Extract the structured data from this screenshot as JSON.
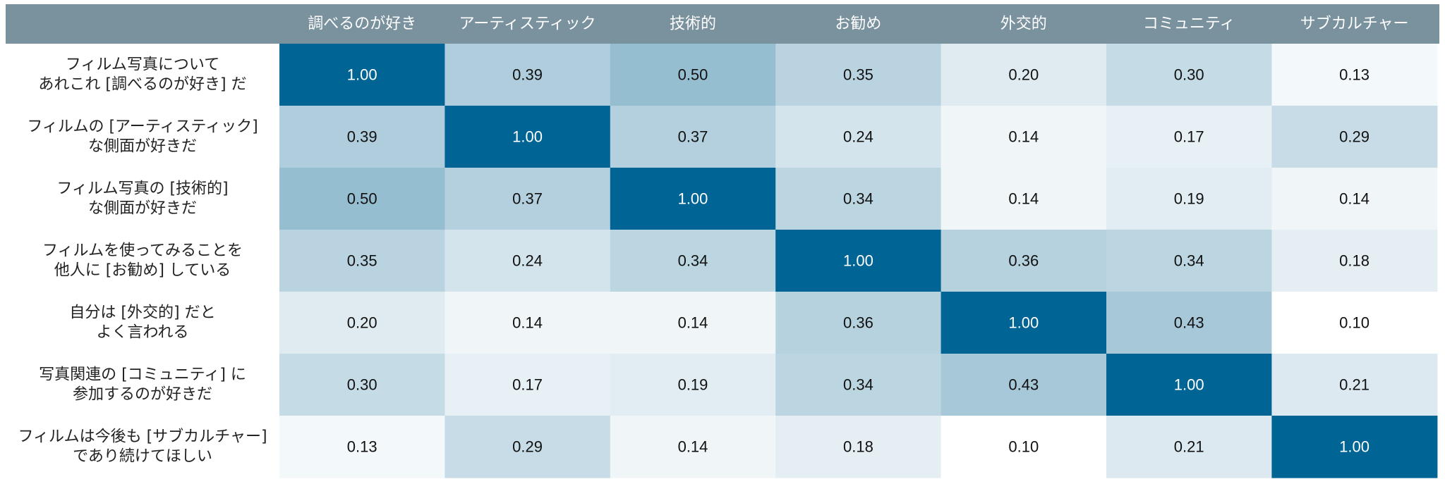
{
  "chart_data": {
    "type": "heatmap",
    "title": "",
    "columns": [
      "調べるのが好き",
      "アーティスティック",
      "技術的",
      "お勧め",
      "外交的",
      "コミュニティ",
      "サブカルチャー"
    ],
    "rows": [
      "フィルム写真について\nあれこれ [調べるのが好き] だ",
      "フィルムの [アーティスティック]\nな側面が好きだ",
      "フィルム写真の [技術的]\nな側面が好きだ",
      "フィルムを使ってみることを\n他人に [お勧め] している",
      "自分は [外交的] だと\nよく言われる",
      "写真関連の [コミュニティ] に\n参加するのが好きだ",
      "フィルムは今後も [サブカルチャー]\nであり続けてほしい"
    ],
    "values": [
      [
        1.0,
        0.39,
        0.5,
        0.35,
        0.2,
        0.3,
        0.13
      ],
      [
        0.39,
        1.0,
        0.37,
        0.24,
        0.14,
        0.17,
        0.29
      ],
      [
        0.5,
        0.37,
        1.0,
        0.34,
        0.14,
        0.19,
        0.14
      ],
      [
        0.35,
        0.24,
        0.34,
        1.0,
        0.36,
        0.34,
        0.18
      ],
      [
        0.2,
        0.14,
        0.14,
        0.36,
        1.0,
        0.43,
        0.1
      ],
      [
        0.3,
        0.17,
        0.19,
        0.34,
        0.43,
        1.0,
        0.21
      ],
      [
        0.13,
        0.29,
        0.14,
        0.18,
        0.1,
        0.21,
        1.0
      ]
    ],
    "value_range": [
      0.1,
      1.0
    ],
    "colors": {
      "header_bg": "#7a919e",
      "header_text": "#ffffff",
      "low": "#ffffff",
      "mid": "#8bb7cc",
      "high": "#006494",
      "text_dark": "#111111",
      "text_light": "#ffffff",
      "row_label_text": "#222222"
    }
  }
}
